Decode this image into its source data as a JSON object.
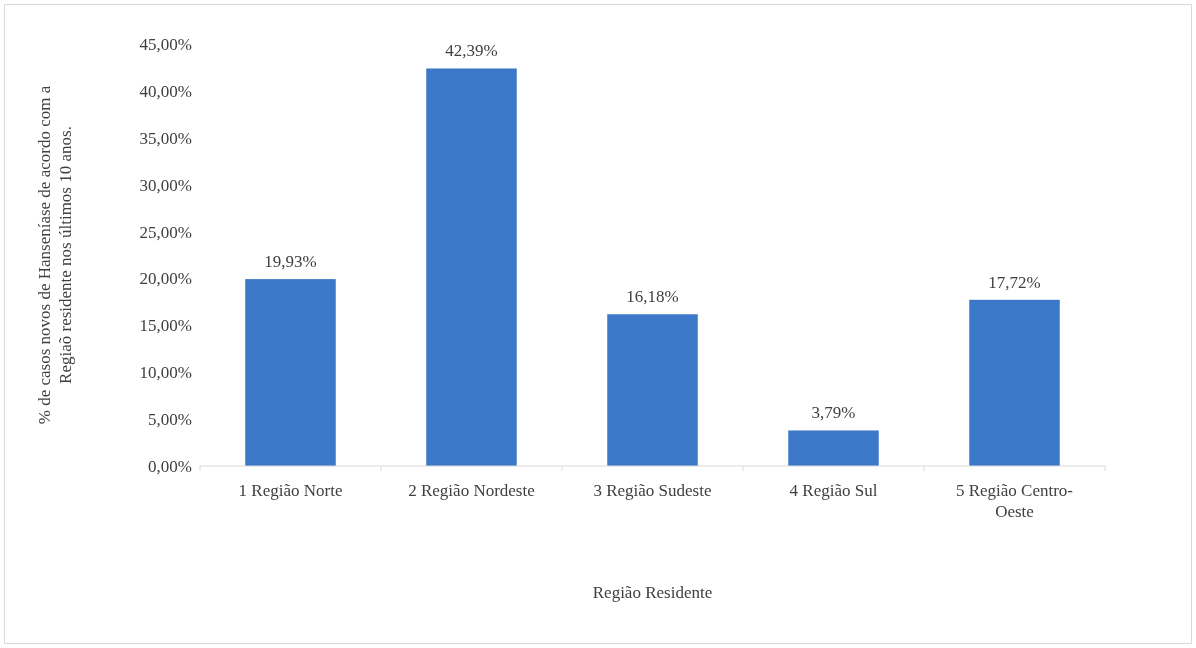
{
  "chart_data": {
    "type": "bar",
    "xlabel": "Região Residente",
    "ylabel": "% de casos novos de Hanseníase de acordo com a Regiaõ residente nos últimos 10 anos.",
    "categories": [
      "1 Região Norte",
      "2 Região Nordeste",
      "3 Região Sudeste",
      "4 Região Sul",
      "5 Região Centro-Oeste"
    ],
    "values": [
      19.93,
      42.39,
      16.18,
      3.79,
      17.72
    ],
    "value_labels": [
      "19,93%",
      "42,39%",
      "16,18%",
      "3,79%",
      "17,72%"
    ],
    "color": "#3b78c8",
    "ylim": [
      0,
      45
    ],
    "yticks": [
      {
        "value": 0,
        "label": "0,00%"
      },
      {
        "value": 5,
        "label": "5,00%"
      },
      {
        "value": 10,
        "label": "10,00%"
      },
      {
        "value": 15,
        "label": "15,00%"
      },
      {
        "value": 20,
        "label": "20,00%"
      },
      {
        "value": 25,
        "label": "25,00%"
      },
      {
        "value": 30,
        "label": "30,00%"
      },
      {
        "value": 35,
        "label": "35,00%"
      },
      {
        "value": 40,
        "label": "40,00%"
      },
      {
        "value": 45,
        "label": "45,00%"
      }
    ],
    "grid": false
  }
}
